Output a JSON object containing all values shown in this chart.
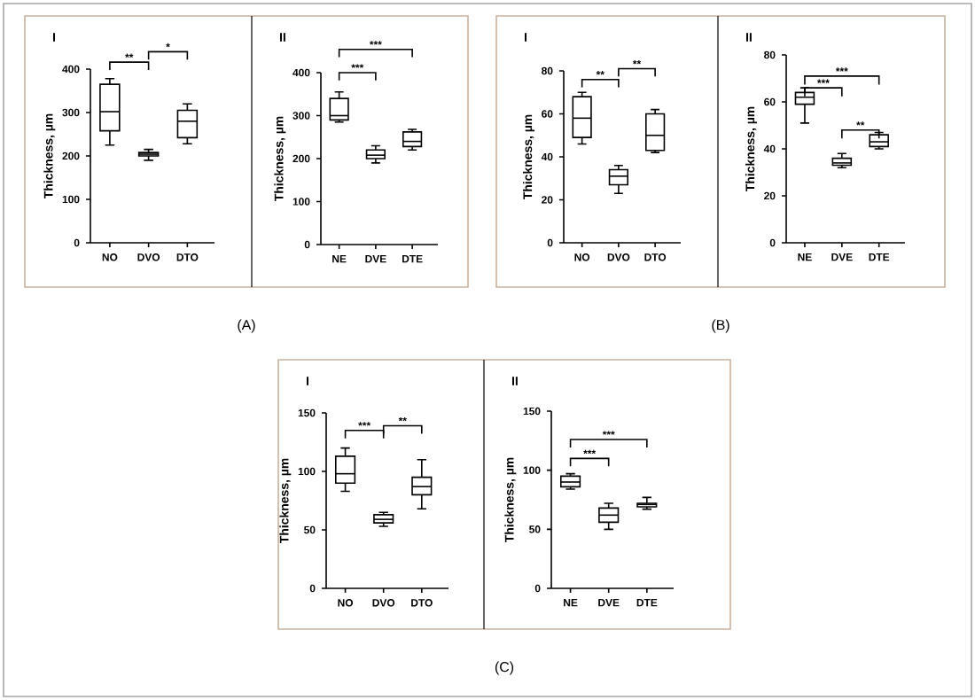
{
  "chart_data": [
    {
      "type": "box",
      "title": "I",
      "ylabel": "Thickness, µm",
      "categories": [
        "NO",
        "DVO",
        "DTO"
      ],
      "ylim": [
        0,
        400
      ],
      "yticks": [
        0,
        100,
        200,
        300,
        400
      ],
      "boxes": [
        {
          "low": 225,
          "q1": 258,
          "median": 302,
          "q3": 365,
          "high": 378
        },
        {
          "low": 190,
          "q1": 200,
          "median": 204,
          "q3": 208,
          "high": 215
        },
        {
          "low": 228,
          "q1": 242,
          "median": 280,
          "q3": 305,
          "high": 320
        }
      ],
      "annotations": [
        "**",
        "*"
      ]
    },
    {
      "type": "box",
      "title": "II",
      "ylabel": "Thickness, µm",
      "categories": [
        "NE",
        "DVE",
        "DTE"
      ],
      "ylim": [
        0,
        400
      ],
      "yticks": [
        0,
        100,
        200,
        300,
        400
      ],
      "boxes": [
        {
          "low": 285,
          "q1": 290,
          "median": 300,
          "q3": 340,
          "high": 355
        },
        {
          "low": 190,
          "q1": 200,
          "median": 208,
          "q3": 220,
          "high": 230
        },
        {
          "low": 220,
          "q1": 228,
          "median": 240,
          "q3": 262,
          "high": 268
        }
      ],
      "annotations": [
        "***",
        "***",
        "(A)"
      ]
    },
    {
      "type": "box",
      "title": "I",
      "ylabel": "Thickness, µm",
      "categories": [
        "NO",
        "DVO",
        "DTO"
      ],
      "ylim": [
        0,
        80
      ],
      "yticks": [
        0,
        20,
        40,
        60,
        80
      ],
      "boxes": [
        {
          "low": 46,
          "q1": 49,
          "median": 58,
          "q3": 68,
          "high": 70
        },
        {
          "low": 23,
          "q1": 27,
          "median": 31,
          "q3": 34,
          "high": 36
        },
        {
          "low": 42,
          "q1": 43,
          "median": 50,
          "q3": 60,
          "high": 62
        }
      ],
      "annotations": [
        "**",
        "**"
      ]
    },
    {
      "type": "box",
      "title": "II",
      "ylabel": "Thickness, µm",
      "categories": [
        "NE",
        "DVE",
        "DTE"
      ],
      "ylim": [
        0,
        80
      ],
      "yticks": [
        0,
        20,
        40,
        60,
        80
      ],
      "boxes": [
        {
          "low": 51,
          "q1": 59,
          "median": 62,
          "q3": 64,
          "high": 66
        },
        {
          "low": 32,
          "q1": 33,
          "median": 34,
          "q3": 36,
          "high": 38
        },
        {
          "low": 40,
          "q1": 41,
          "median": 43,
          "q3": 46,
          "high": 47
        }
      ],
      "annotations": [
        "***",
        "***",
        "**",
        "(B)"
      ]
    },
    {
      "type": "box",
      "title": "I",
      "ylabel": "Thickness, µm",
      "categories": [
        "NO",
        "DVO",
        "DTO"
      ],
      "ylim": [
        0,
        150
      ],
      "yticks": [
        0,
        50,
        100,
        150
      ],
      "boxes": [
        {
          "low": 83,
          "q1": 90,
          "median": 98,
          "q3": 113,
          "high": 120
        },
        {
          "low": 53,
          "q1": 56,
          "median": 59,
          "q3": 63,
          "high": 65
        },
        {
          "low": 68,
          "q1": 80,
          "median": 87,
          "q3": 95,
          "high": 110
        }
      ],
      "annotations": [
        "***",
        "**"
      ]
    },
    {
      "type": "box",
      "title": "II",
      "ylabel": "Thickness, µm",
      "categories": [
        "NE",
        "DVE",
        "DTE"
      ],
      "ylim": [
        0,
        150
      ],
      "yticks": [
        0,
        50,
        100,
        150
      ],
      "boxes": [
        {
          "low": 84,
          "q1": 86,
          "median": 90,
          "q3": 95,
          "high": 97
        },
        {
          "low": 50,
          "q1": 56,
          "median": 62,
          "q3": 68,
          "high": 72
        },
        {
          "low": 67,
          "q1": 69,
          "median": 71,
          "q3": 72,
          "high": 77
        }
      ],
      "annotations": [
        "***",
        "***",
        "(C)"
      ]
    }
  ]
}
